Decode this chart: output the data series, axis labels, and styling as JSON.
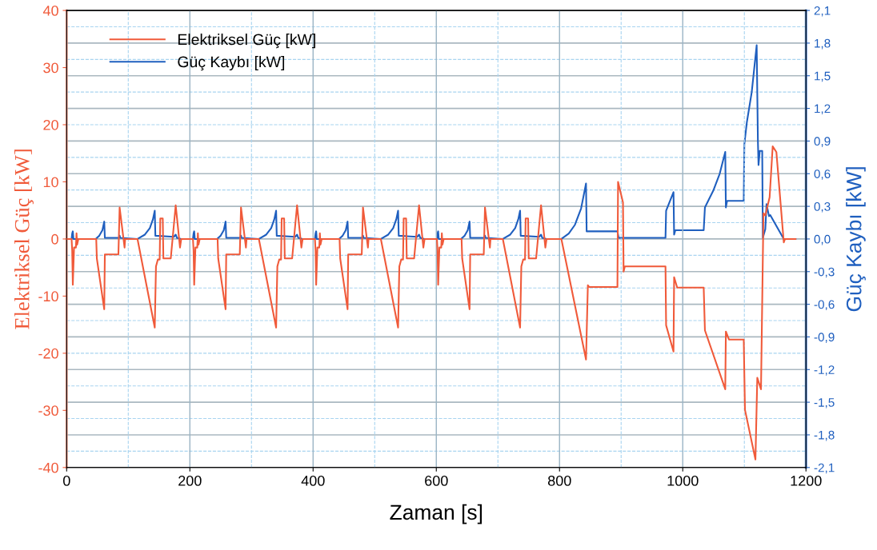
{
  "chart_data": {
    "type": "line",
    "xlabel": "Zaman [s]",
    "ylabel": "Elektriksel Güç [kW]",
    "y2label": "Güç Kaybı [kW]",
    "xlim": [
      0,
      1200
    ],
    "xticks": [
      0,
      200,
      400,
      600,
      800,
      1000,
      1200
    ],
    "ylim": [
      -40,
      40
    ],
    "yticks": [
      -40,
      -30,
      -20,
      -10,
      0,
      10,
      20,
      30,
      40
    ],
    "y2lim": [
      -2.1,
      2.1
    ],
    "y2ticks": [
      {
        "value": -2.1,
        "label": "-2,1"
      },
      {
        "value": -1.8,
        "label": "-1,8"
      },
      {
        "value": -1.5,
        "label": "-1,5"
      },
      {
        "value": -1.2,
        "label": "-1,2"
      },
      {
        "value": -0.9,
        "label": "-0,9"
      },
      {
        "value": -0.6,
        "label": "-0,6"
      },
      {
        "value": -0.3,
        "label": "-0,3"
      },
      {
        "value": 0,
        "label": "0,0"
      },
      {
        "value": 0.3,
        "label": "0,3"
      },
      {
        "value": 0.6,
        "label": "0,6"
      },
      {
        "value": 0.9,
        "label": "0,9"
      },
      {
        "value": 1.2,
        "label": "1,2"
      },
      {
        "value": 1.5,
        "label": "1,5"
      },
      {
        "value": 1.8,
        "label": "1,8"
      },
      {
        "value": 2.1,
        "label": "2,1"
      }
    ],
    "grid": true,
    "legend": "top left",
    "marker": "none",
    "line_style": "solid",
    "series": [
      {
        "name": "Elektriksel Güç [kW]",
        "color": "#f05a3a",
        "axis": "y",
        "x": [
          0,
          8,
          9,
          10,
          12,
          15,
          16,
          17,
          19,
          48,
          49,
          61,
          62,
          84,
          86,
          94,
          95,
          115,
          143,
          145,
          148,
          151,
          152,
          156,
          157,
          169,
          177,
          184,
          186,
          205,
          206,
          207,
          209,
          212,
          213,
          214,
          216,
          245,
          246,
          258,
          259,
          281,
          283,
          291,
          292,
          312,
          340,
          342,
          345,
          348,
          349,
          353,
          354,
          366,
          374,
          381,
          383,
          403,
          404,
          405,
          407,
          410,
          411,
          412,
          414,
          443,
          444,
          456,
          457,
          479,
          481,
          489,
          490,
          510,
          538,
          540,
          543,
          546,
          547,
          551,
          552,
          564,
          572,
          579,
          581,
          601,
          602,
          603,
          605,
          608,
          609,
          610,
          612,
          641,
          642,
          654,
          655,
          677,
          679,
          687,
          688,
          708,
          736,
          738,
          741,
          744,
          745,
          749,
          750,
          762,
          770,
          777,
          779,
          803,
          843,
          846,
          848,
          894,
          895,
          903,
          904,
          906,
          972,
          973,
          985,
          986,
          991,
          1034,
          1036,
          1069,
          1070,
          1075,
          1099,
          1101,
          1118,
          1121,
          1127,
          1131,
          1134,
          1141,
          1146,
          1152,
          1164,
          1166,
          1183
        ],
        "values": [
          0,
          0,
          -2,
          -8,
          -1.5,
          -1.5,
          1,
          -1,
          0,
          0,
          -3.4,
          -12.3,
          -2.7,
          -2.7,
          5.5,
          -1.5,
          0,
          0,
          -15.5,
          -4.8,
          -3.6,
          -3.6,
          3.6,
          3.6,
          -3.4,
          -3.4,
          5.9,
          -1.5,
          0,
          0,
          -2,
          -8,
          -1.5,
          -1.5,
          1,
          -1,
          0,
          0,
          -3.4,
          -12.3,
          -2.7,
          -2.7,
          5.5,
          -1.5,
          0,
          0,
          -15.5,
          -4.8,
          -3.6,
          -3.6,
          3.6,
          3.6,
          -3.4,
          -3.4,
          5.9,
          -1.5,
          0,
          0,
          -2,
          -8,
          -1.5,
          -1.5,
          1,
          -1,
          0,
          0,
          -3.4,
          -12.3,
          -2.7,
          -2.7,
          5.5,
          -1.5,
          0,
          0,
          -15.5,
          -4.8,
          -3.6,
          -3.6,
          3.6,
          3.6,
          -3.4,
          -3.4,
          5.9,
          -1.5,
          0,
          0,
          -2,
          -8,
          -1.5,
          -1.5,
          1,
          -1,
          0,
          0,
          -3.4,
          -12.3,
          -2.7,
          -2.7,
          5.5,
          -1.5,
          0,
          0,
          -15.5,
          -4.8,
          -3.6,
          -3.6,
          3.6,
          3.6,
          -3.4,
          -3.4,
          5.9,
          -1.5,
          0,
          0,
          -21.1,
          -8.1,
          -8.4,
          -8.4,
          10,
          6.4,
          -5.7,
          -4.8,
          -4.8,
          -15.1,
          -19.7,
          -6.7,
          -8.5,
          -8.5,
          -16,
          -26.3,
          -16.2,
          -17.6,
          -17.6,
          -29.9,
          -38.6,
          -24.3,
          -26.3,
          4.5,
          4.1,
          7.3,
          16.2,
          15.2,
          -0.6,
          0,
          0
        ]
      },
      {
        "name": "Güç Kaybı [kW]",
        "color": "#1f5fbf",
        "axis": "y2",
        "x": [
          0,
          8,
          9,
          10,
          11,
          47,
          53,
          58,
          61,
          62,
          85,
          86,
          87,
          115,
          127,
          135,
          140,
          143,
          144,
          174,
          177,
          179,
          186,
          205,
          206,
          207,
          208,
          244,
          250,
          255,
          258,
          259,
          282,
          283,
          284,
          312,
          324,
          332,
          337,
          340,
          341,
          371,
          374,
          376,
          383,
          403,
          404,
          405,
          406,
          442,
          448,
          453,
          456,
          457,
          480,
          481,
          482,
          510,
          522,
          530,
          535,
          538,
          539,
          569,
          572,
          574,
          581,
          601,
          602,
          603,
          604,
          640,
          646,
          651,
          654,
          655,
          678,
          679,
          680,
          708,
          720,
          728,
          733,
          736,
          737,
          767,
          770,
          772,
          779,
          803,
          815,
          825,
          835,
          843,
          844,
          894,
          896,
          972,
          973,
          985,
          986,
          988,
          1034,
          1036,
          1050,
          1060,
          1069,
          1070,
          1072,
          1099,
          1100,
          1104,
          1112,
          1120,
          1122,
          1123,
          1125,
          1129,
          1130,
          1134,
          1136,
          1140,
          1142,
          1164,
          1183
        ],
        "values": [
          0,
          0,
          0.05,
          0.07,
          0,
          0,
          0.03,
          0.08,
          0.16,
          0.01,
          0.01,
          0.03,
          0.01,
          0,
          0.04,
          0.1,
          0.18,
          0.26,
          0.03,
          0.02,
          0.04,
          0.01,
          0,
          0,
          0.05,
          0.07,
          0,
          0,
          0.03,
          0.08,
          0.16,
          0.01,
          0.01,
          0.03,
          0.01,
          0,
          0.04,
          0.1,
          0.18,
          0.26,
          0.03,
          0.02,
          0.04,
          0.01,
          0,
          0,
          0.05,
          0.07,
          0,
          0,
          0.03,
          0.08,
          0.16,
          0.01,
          0.01,
          0.03,
          0.01,
          0,
          0.04,
          0.1,
          0.18,
          0.26,
          0.03,
          0.02,
          0.04,
          0.01,
          0,
          0,
          0.05,
          0.07,
          0,
          0,
          0.03,
          0.08,
          0.16,
          0.01,
          0.01,
          0.03,
          0.01,
          0,
          0.04,
          0.1,
          0.18,
          0.26,
          0.03,
          0.02,
          0.04,
          0.01,
          0,
          0,
          0.05,
          0.13,
          0.28,
          0.51,
          0.07,
          0.07,
          0.01,
          0.01,
          0.26,
          0.43,
          0.04,
          0.08,
          0.08,
          0.29,
          0.45,
          0.6,
          0.8,
          0.29,
          0.35,
          0.35,
          0.87,
          1.07,
          1.35,
          1.78,
          0.9,
          0.68,
          0.81,
          0.81,
          0.01,
          0.09,
          0.32,
          0.21,
          0.22,
          0,
          0
        ]
      }
    ]
  }
}
